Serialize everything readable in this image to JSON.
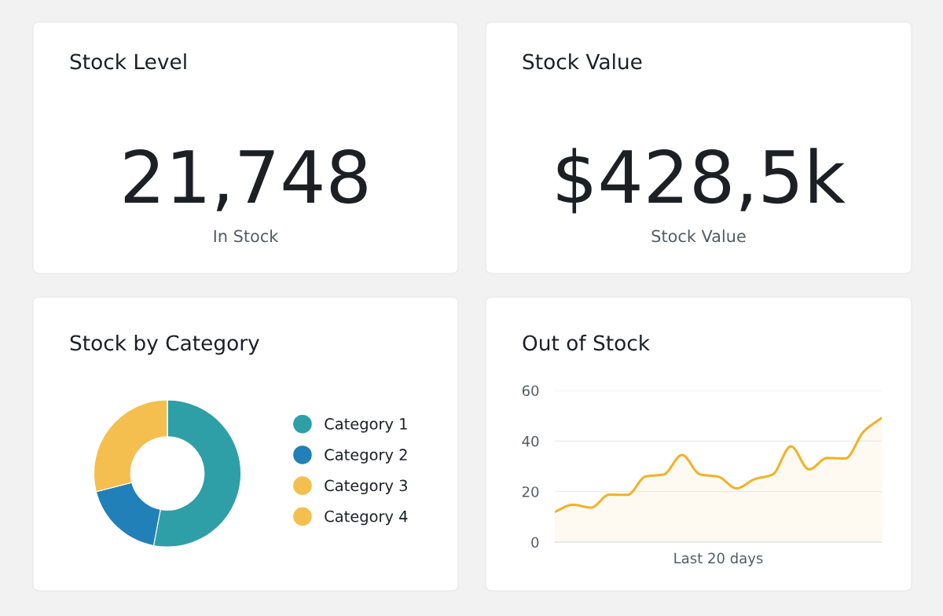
{
  "chart_data": [
    {
      "type": "other",
      "title": "Stock Level",
      "annotations": [
        "21,748",
        "In Stock"
      ]
    },
    {
      "type": "other",
      "title": "Stock Value",
      "annotations": [
        "$428,5k",
        "Stock Value"
      ]
    },
    {
      "type": "donut",
      "title": "Stock by Category",
      "categories": [
        "Category 1",
        "Category 2",
        "Category 3",
        "Category 4"
      ],
      "values": [
        53,
        18,
        29,
        0
      ],
      "colors": [
        "#2e9fa6",
        "#2180b8",
        "#f5bf4f",
        "#f5bf4f"
      ],
      "legend": "right"
    },
    {
      "type": "area",
      "title": "Out of Stock",
      "xlabel": "Last 20 days",
      "categories": [
        null,
        null,
        null,
        null,
        null,
        null,
        null,
        null,
        null,
        null,
        null,
        null,
        null,
        null,
        null,
        null,
        null,
        null,
        null
      ],
      "series": [
        {
          "color": "#f2b227",
          "values": [
            12,
            14.8,
            13.7,
            18.8,
            18.7,
            26,
            26.8,
            34.5,
            26.8,
            25.9,
            21.3,
            24.9,
            26.8,
            37.9,
            28.8,
            33.3,
            33.1,
            43.7,
            49.2
          ]
        }
      ],
      "ylim": [
        0,
        60
      ],
      "yticks": [
        0,
        20,
        40,
        60
      ],
      "grid": "y"
    }
  ]
}
